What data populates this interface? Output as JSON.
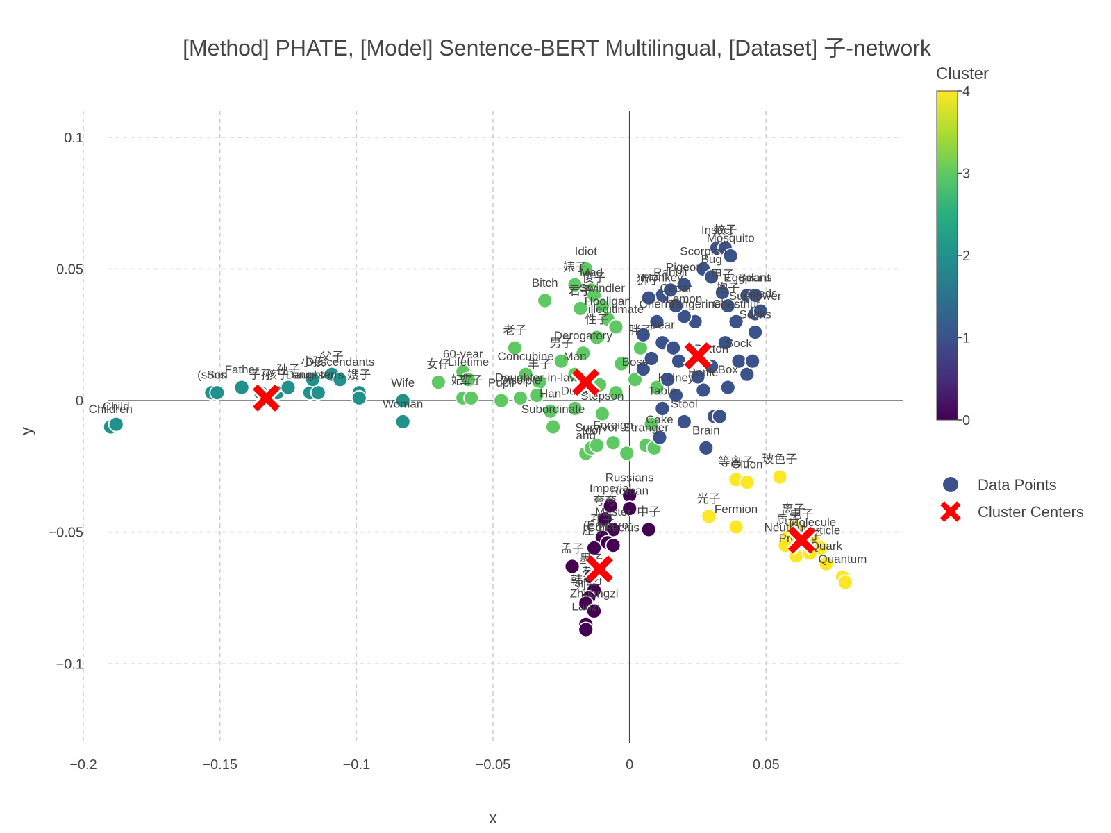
{
  "chart_data": {
    "type": "scatter",
    "title": "[Method] PHATE, [Model] Sentence-BERT Multilingual, [Dataset] 子-network",
    "xlabel": "x",
    "ylabel": "y",
    "xlim": [
      -0.2,
      0.1
    ],
    "ylim": [
      -0.13,
      0.11
    ],
    "x_ticks": [
      {
        "value": -0.2,
        "label": "−0.2"
      },
      {
        "value": -0.15,
        "label": "−0.15"
      },
      {
        "value": -0.1,
        "label": "−0.1"
      },
      {
        "value": -0.05,
        "label": "−0.05"
      },
      {
        "value": 0,
        "label": "0"
      },
      {
        "value": 0.05,
        "label": "0.05"
      }
    ],
    "y_ticks": [
      {
        "value": 0.1,
        "label": "0.1"
      },
      {
        "value": 0.05,
        "label": "0.05"
      },
      {
        "value": 0,
        "label": "0"
      },
      {
        "value": -0.05,
        "label": "−0.05"
      },
      {
        "value": -0.1,
        "label": "−0.1"
      }
    ],
    "grid": true,
    "colorscale": "viridis",
    "colorbar": {
      "title": "Cluster",
      "min": 0,
      "max": 4,
      "ticks": [
        "0",
        "1",
        "2",
        "3",
        "4"
      ]
    },
    "legend": {
      "placement": "right",
      "entries": [
        "Data Points",
        "Cluster Centers"
      ]
    },
    "cluster_colors": [
      "#440154",
      "#3b528b",
      "#21918c",
      "#5ec962",
      "#fde725"
    ],
    "points": [
      {
        "x": -0.19,
        "y": -0.01,
        "c": 2,
        "label": "Children"
      },
      {
        "x": -0.188,
        "y": -0.009,
        "c": 2,
        "label": "Child"
      },
      {
        "x": -0.153,
        "y": 0.003,
        "c": 2,
        "label": "(sons"
      },
      {
        "x": -0.151,
        "y": 0.003,
        "c": 2,
        "label": "Son"
      },
      {
        "x": -0.142,
        "y": 0.005,
        "c": 2,
        "label": "Father"
      },
      {
        "x": -0.135,
        "y": 0.003,
        "c": 2,
        "label": "子孙"
      },
      {
        "x": -0.129,
        "y": 0.003,
        "c": 2,
        "label": "孩子"
      },
      {
        "x": -0.125,
        "y": 0.005,
        "c": 2,
        "label": "孙子"
      },
      {
        "x": -0.117,
        "y": 0.003,
        "c": 2,
        "label": "Daughter"
      },
      {
        "x": -0.114,
        "y": 0.003,
        "c": 2,
        "label": "ancestors"
      },
      {
        "x": -0.109,
        "y": 0.01,
        "c": 2,
        "label": "父子"
      },
      {
        "x": -0.116,
        "y": 0.008,
        "c": 2,
        "label": "小孩"
      },
      {
        "x": -0.106,
        "y": 0.008,
        "c": 2,
        "label": "Descendants"
      },
      {
        "x": -0.099,
        "y": 0.003,
        "c": 2,
        "label": "嫂子"
      },
      {
        "x": -0.099,
        "y": 0.001,
        "c": 2,
        "label": ""
      },
      {
        "x": -0.083,
        "y": 0.0,
        "c": 2,
        "label": "Wife"
      },
      {
        "x": -0.083,
        "y": -0.008,
        "c": 2,
        "label": "Woman"
      },
      {
        "x": -0.07,
        "y": 0.007,
        "c": 3,
        "label": "女仔"
      },
      {
        "x": -0.061,
        "y": 0.011,
        "c": 3,
        "label": "60-year"
      },
      {
        "x": -0.059,
        "y": 0.008,
        "c": 3,
        "label": "Lifetime"
      },
      {
        "x": -0.061,
        "y": 0.001,
        "c": 3,
        "label": "妃子"
      },
      {
        "x": -0.058,
        "y": 0.001,
        "c": 3,
        "label": "辈子"
      },
      {
        "x": -0.047,
        "y": 0.0,
        "c": 3,
        "label": "Pupil"
      },
      {
        "x": -0.04,
        "y": 0.001,
        "c": 3,
        "label": "Disciple"
      },
      {
        "x": -0.042,
        "y": 0.02,
        "c": 3,
        "label": "老子"
      },
      {
        "x": -0.038,
        "y": 0.01,
        "c": 3,
        "label": "Concubine"
      },
      {
        "x": -0.031,
        "y": 0.038,
        "c": 3,
        "label": "Bitch"
      },
      {
        "x": -0.029,
        "y": -0.004,
        "c": 3,
        "label": "Han"
      },
      {
        "x": -0.028,
        "y": -0.01,
        "c": 3,
        "label": "Subordinate"
      },
      {
        "x": -0.025,
        "y": 0.015,
        "c": 3,
        "label": "男子"
      },
      {
        "x": -0.02,
        "y": 0.01,
        "c": 3,
        "label": "Man"
      },
      {
        "x": -0.02,
        "y": -0.003,
        "c": 3,
        "label": "Dude"
      },
      {
        "x": -0.017,
        "y": 0.018,
        "c": 3,
        "label": "Derogatory"
      },
      {
        "x": -0.02,
        "y": 0.044,
        "c": 3,
        "label": "婊子"
      },
      {
        "x": -0.018,
        "y": 0.035,
        "c": 3,
        "label": "君子"
      },
      {
        "x": -0.016,
        "y": 0.05,
        "c": 3,
        "label": "Idiot"
      },
      {
        "x": -0.014,
        "y": 0.042,
        "c": 3,
        "label": "Mad"
      },
      {
        "x": -0.013,
        "y": 0.04,
        "c": 3,
        "label": "傻子"
      },
      {
        "x": -0.01,
        "y": 0.036,
        "c": 3,
        "label": "Swindler"
      },
      {
        "x": -0.008,
        "y": 0.031,
        "c": 3,
        "label": "Hooligan"
      },
      {
        "x": -0.005,
        "y": 0.028,
        "c": 3,
        "label": "illegitimate"
      },
      {
        "x": -0.012,
        "y": 0.024,
        "c": 3,
        "label": "性子"
      },
      {
        "x": -0.016,
        "y": -0.02,
        "c": 3,
        "label": "and"
      },
      {
        "x": -0.014,
        "y": -0.018,
        "c": 3,
        "label": "fool"
      },
      {
        "x": -0.012,
        "y": -0.017,
        "c": 3,
        "label": "Survivor"
      },
      {
        "x": -0.006,
        "y": -0.016,
        "c": 3,
        "label": "Foreign"
      },
      {
        "x": -0.001,
        "y": -0.02,
        "c": 3,
        "label": ""
      },
      {
        "x": 0.006,
        "y": -0.017,
        "c": 3,
        "label": "Stranger"
      },
      {
        "x": 0.009,
        "y": -0.018,
        "c": 3,
        "label": ""
      },
      {
        "x": -0.01,
        "y": -0.005,
        "c": 3,
        "label": "Stepson"
      },
      {
        "x": -0.005,
        "y": 0.003,
        "c": 3,
        "label": ""
      },
      {
        "x": 0.002,
        "y": 0.008,
        "c": 3,
        "label": "Boss"
      },
      {
        "x": -0.003,
        "y": 0.014,
        "c": 3,
        "label": ""
      },
      {
        "x": 0.004,
        "y": 0.02,
        "c": 3,
        "label": "胖子"
      },
      {
        "x": -0.033,
        "y": 0.007,
        "c": 3,
        "label": "丰子"
      },
      {
        "x": -0.011,
        "y": 0.006,
        "c": 3,
        "label": ""
      },
      {
        "x": -0.034,
        "y": 0.002,
        "c": 3,
        "label": "Daughter-in-law"
      },
      {
        "x": 0.01,
        "y": 0.005,
        "c": 3,
        "label": ""
      },
      {
        "x": 0.008,
        "y": -0.009,
        "c": 3,
        "label": ""
      },
      {
        "x": 0.032,
        "y": 0.058,
        "c": 1,
        "label": "Insect"
      },
      {
        "x": 0.035,
        "y": 0.058,
        "c": 1,
        "label": "蚊子"
      },
      {
        "x": 0.037,
        "y": 0.055,
        "c": 1,
        "label": "Mosquito"
      },
      {
        "x": 0.027,
        "y": 0.05,
        "c": 1,
        "label": "Scorpion"
      },
      {
        "x": 0.03,
        "y": 0.047,
        "c": 1,
        "label": "Bug"
      },
      {
        "x": 0.034,
        "y": 0.041,
        "c": 1,
        "label": "甲子"
      },
      {
        "x": 0.043,
        "y": 0.04,
        "c": 1,
        "label": "Eggplant"
      },
      {
        "x": 0.046,
        "y": 0.04,
        "c": 1,
        "label": "Beans"
      },
      {
        "x": 0.046,
        "y": 0.033,
        "c": 1,
        "label": "Sunflower"
      },
      {
        "x": 0.039,
        "y": 0.03,
        "c": 1,
        "label": "Chestnut"
      },
      {
        "x": 0.036,
        "y": 0.036,
        "c": 1,
        "label": "抱子"
      },
      {
        "x": 0.048,
        "y": 0.034,
        "c": 1,
        "label": "Seeds"
      },
      {
        "x": 0.046,
        "y": 0.026,
        "c": 1,
        "label": "Socks"
      },
      {
        "x": 0.024,
        "y": 0.03,
        "c": 1,
        "label": "Tangerine"
      },
      {
        "x": 0.02,
        "y": 0.032,
        "c": 1,
        "label": "Lemon"
      },
      {
        "x": 0.017,
        "y": 0.036,
        "c": 1,
        "label": "Cedar"
      },
      {
        "x": 0.012,
        "y": 0.04,
        "c": 1,
        "label": "Monkey"
      },
      {
        "x": 0.007,
        "y": 0.039,
        "c": 1,
        "label": "狮子"
      },
      {
        "x": 0.02,
        "y": 0.044,
        "c": 1,
        "label": "Pigeon"
      },
      {
        "x": 0.015,
        "y": 0.042,
        "c": 1,
        "label": "Rabbit"
      },
      {
        "x": 0.01,
        "y": 0.03,
        "c": 1,
        "label": "Cherry"
      },
      {
        "x": 0.005,
        "y": 0.025,
        "c": 1,
        "label": ""
      },
      {
        "x": 0.012,
        "y": 0.022,
        "c": 1,
        "label": "Bear"
      },
      {
        "x": 0.018,
        "y": 0.015,
        "c": 1,
        "label": ""
      },
      {
        "x": 0.03,
        "y": 0.013,
        "c": 1,
        "label": "Button"
      },
      {
        "x": 0.04,
        "y": 0.015,
        "c": 1,
        "label": "Sock"
      },
      {
        "x": 0.043,
        "y": 0.01,
        "c": 1,
        "label": ""
      },
      {
        "x": 0.036,
        "y": 0.005,
        "c": 1,
        "label": "Box"
      },
      {
        "x": 0.027,
        "y": 0.004,
        "c": 1,
        "label": "Bottle"
      },
      {
        "x": 0.017,
        "y": 0.002,
        "c": 1,
        "label": "Kidney"
      },
      {
        "x": 0.012,
        "y": -0.003,
        "c": 1,
        "label": "Table"
      },
      {
        "x": 0.02,
        "y": -0.008,
        "c": 1,
        "label": "Stool"
      },
      {
        "x": 0.031,
        "y": -0.006,
        "c": 1,
        "label": ""
      },
      {
        "x": 0.033,
        "y": -0.006,
        "c": 1,
        "label": ""
      },
      {
        "x": 0.011,
        "y": -0.014,
        "c": 1,
        "label": "Cake"
      },
      {
        "x": 0.028,
        "y": -0.018,
        "c": 1,
        "label": "Brain"
      },
      {
        "x": 0.005,
        "y": 0.012,
        "c": 1,
        "label": ""
      },
      {
        "x": 0.016,
        "y": 0.02,
        "c": 1,
        "label": ""
      },
      {
        "x": 0.035,
        "y": 0.022,
        "c": 1,
        "label": ""
      },
      {
        "x": 0.045,
        "y": 0.015,
        "c": 1,
        "label": ""
      },
      {
        "x": 0.025,
        "y": 0.009,
        "c": 1,
        "label": ""
      },
      {
        "x": 0.014,
        "y": 0.008,
        "c": 1,
        "label": ""
      },
      {
        "x": 0.008,
        "y": 0.016,
        "c": 1,
        "label": ""
      },
      {
        "x": -0.007,
        "y": -0.04,
        "c": 0,
        "label": "Imperial"
      },
      {
        "x": 0.0,
        "y": -0.036,
        "c": 0,
        "label": "Russians"
      },
      {
        "x": 0.0,
        "y": -0.041,
        "c": 0,
        "label": "Roman"
      },
      {
        "x": -0.009,
        "y": -0.045,
        "c": 0,
        "label": "夸夸"
      },
      {
        "x": 0.007,
        "y": -0.049,
        "c": 0,
        "label": "中子"
      },
      {
        "x": -0.006,
        "y": -0.049,
        "c": 0,
        "label": "Master"
      },
      {
        "x": -0.01,
        "y": -0.052,
        "c": 0,
        "label": "孔子"
      },
      {
        "x": -0.008,
        "y": -0.054,
        "c": 0,
        "label": "(Emperor"
      },
      {
        "x": -0.006,
        "y": -0.055,
        "c": 0,
        "label": "Confucius"
      },
      {
        "x": -0.013,
        "y": -0.056,
        "c": 0,
        "label": "庄子"
      },
      {
        "x": -0.021,
        "y": -0.063,
        "c": 0,
        "label": "孟子"
      },
      {
        "x": -0.014,
        "y": -0.067,
        "c": 0,
        "label": "墨子"
      },
      {
        "x": -0.013,
        "y": -0.072,
        "c": 0,
        "label": "荀子"
      },
      {
        "x": -0.015,
        "y": -0.075,
        "c": 0,
        "label": "韩非子"
      },
      {
        "x": -0.016,
        "y": -0.077,
        "c": 0,
        "label": "列子"
      },
      {
        "x": -0.013,
        "y": -0.08,
        "c": 0,
        "label": "Zhuangzi"
      },
      {
        "x": -0.016,
        "y": -0.085,
        "c": 0,
        "label": "Laozi"
      },
      {
        "x": -0.016,
        "y": -0.087,
        "c": 0,
        "label": ""
      },
      {
        "x": 0.055,
        "y": -0.029,
        "c": 4,
        "label": "玻色子"
      },
      {
        "x": 0.039,
        "y": -0.03,
        "c": 4,
        "label": "等离子"
      },
      {
        "x": 0.043,
        "y": -0.031,
        "c": 4,
        "label": "Gluon"
      },
      {
        "x": 0.029,
        "y": -0.044,
        "c": 4,
        "label": "光子"
      },
      {
        "x": 0.039,
        "y": -0.048,
        "c": 4,
        "label": "Fermion"
      },
      {
        "x": 0.06,
        "y": -0.048,
        "c": 4,
        "label": "离子"
      },
      {
        "x": 0.063,
        "y": -0.05,
        "c": 4,
        "label": "电子"
      },
      {
        "x": 0.058,
        "y": -0.052,
        "c": 4,
        "label": "质子"
      },
      {
        "x": 0.067,
        "y": -0.053,
        "c": 4,
        "label": "Molecule"
      },
      {
        "x": 0.057,
        "y": -0.055,
        "c": 4,
        "label": "Neutron"
      },
      {
        "x": 0.07,
        "y": -0.056,
        "c": 4,
        "label": "Particle"
      },
      {
        "x": 0.061,
        "y": -0.059,
        "c": 4,
        "label": "Proton"
      },
      {
        "x": 0.066,
        "y": -0.058,
        "c": 4,
        "label": "量子"
      },
      {
        "x": 0.072,
        "y": -0.062,
        "c": 4,
        "label": "Quark"
      },
      {
        "x": 0.078,
        "y": -0.067,
        "c": 4,
        "label": "Quantum"
      },
      {
        "x": 0.079,
        "y": -0.069,
        "c": 4,
        "label": ""
      }
    ],
    "centers": [
      {
        "x": -0.133,
        "y": 0.001,
        "c": 2
      },
      {
        "x": -0.016,
        "y": 0.007,
        "c": 3
      },
      {
        "x": 0.025,
        "y": 0.017,
        "c": 1
      },
      {
        "x": -0.011,
        "y": -0.064,
        "c": 0
      },
      {
        "x": 0.063,
        "y": -0.053,
        "c": 4
      }
    ]
  }
}
